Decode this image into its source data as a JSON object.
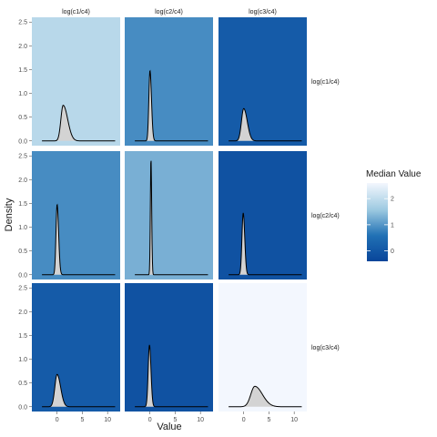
{
  "chart_data": {
    "type": "area",
    "kind": "faceted density plot (3x3 grid), panel background colored by median value",
    "xlabel": "Value",
    "ylabel": "Density",
    "xlim": [
      -5,
      12.5
    ],
    "ylim": [
      -0.1,
      2.6
    ],
    "x_ticks": [
      0,
      5,
      10
    ],
    "y_ticks": [
      "0.0",
      "0.5",
      "1.0",
      "1.5",
      "2.0",
      "2.5"
    ],
    "column_labels": [
      "log(c1/c4)",
      "log(c2/c4)",
      "log(c3/c4)"
    ],
    "row_labels": [
      "log(c1/c4)",
      "log(c2/c4)",
      "log(c3/c4)"
    ],
    "legend": {
      "title": "Median Value",
      "position": "right",
      "ticks": [
        2,
        1,
        0
      ],
      "range": [
        -0.4,
        2.6
      ],
      "colors": [
        "#f3f7fe",
        "#9ecae1",
        "#2171b5",
        "#08459a"
      ]
    },
    "density_fill": "#d3d3d3",
    "density_line": "#000000",
    "panels": [
      {
        "row": "log(c1/c4)",
        "col": "log(c1/c4)",
        "median": 1.9,
        "peak_x": 1.2,
        "peak_density": 0.75,
        "width_left": 0.45,
        "width_right": 0.9
      },
      {
        "row": "log(c1/c4)",
        "col": "log(c2/c4)",
        "median": 0.9,
        "peak_x": 0.0,
        "peak_density": 1.48,
        "width_left": 0.22,
        "width_right": 0.3
      },
      {
        "row": "log(c1/c4)",
        "col": "log(c3/c4)",
        "median": 0.1,
        "peak_x": 0.0,
        "peak_density": 0.68,
        "width_left": 0.45,
        "width_right": 0.7
      },
      {
        "row": "log(c2/c4)",
        "col": "log(c1/c4)",
        "median": 0.9,
        "peak_x": 0.0,
        "peak_density": 1.48,
        "width_left": 0.22,
        "width_right": 0.3
      },
      {
        "row": "log(c2/c4)",
        "col": "log(c2/c4)",
        "median": 1.3,
        "peak_x": 0.2,
        "peak_density": 2.45,
        "width_left": 0.12,
        "width_right": 0.14
      },
      {
        "row": "log(c2/c4)",
        "col": "log(c3/c4)",
        "median": -0.1,
        "peak_x": -0.1,
        "peak_density": 1.3,
        "width_left": 0.25,
        "width_right": 0.3
      },
      {
        "row": "log(c3/c4)",
        "col": "log(c1/c4)",
        "median": 0.1,
        "peak_x": 0.0,
        "peak_density": 0.68,
        "width_left": 0.45,
        "width_right": 0.7
      },
      {
        "row": "log(c3/c4)",
        "col": "log(c2/c4)",
        "median": -0.1,
        "peak_x": -0.1,
        "peak_density": 1.3,
        "width_left": 0.25,
        "width_right": 0.3
      },
      {
        "row": "log(c3/c4)",
        "col": "log(c3/c4)",
        "median": 2.6,
        "peak_x": 2.2,
        "peak_density": 0.43,
        "width_left": 0.8,
        "width_right": 1.5
      }
    ]
  }
}
